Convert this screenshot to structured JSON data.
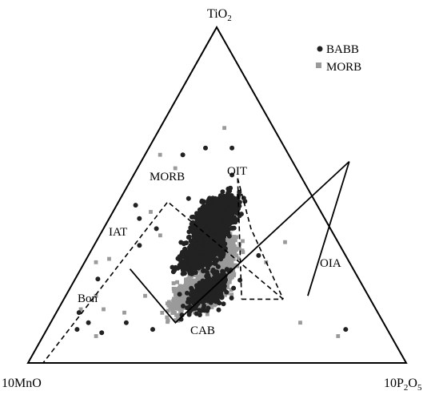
{
  "chart_data": {
    "type": "ternary",
    "vertices": {
      "top": {
        "main": "TiO",
        "sub": "2"
      },
      "left": {
        "main": "10MnO",
        "sub": ""
      },
      "right": {
        "main": "10P",
        "sub": "2",
        "main2": "O",
        "sub2": "5"
      }
    },
    "legend": {
      "placement": "top-right",
      "entries": [
        {
          "name": "BABB",
          "marker": "circle",
          "color": "#222222"
        },
        {
          "name": "MORB",
          "marker": "square",
          "color": "#9a9a9a"
        }
      ]
    },
    "fields": [
      "OIT",
      "MORB",
      "IAT",
      "OIA",
      "Bon",
      "CAB"
    ],
    "boundaries": [
      {
        "style": "solid",
        "points": [
          [
            0.13,
            0.28
          ],
          [
            0.33,
            0.12
          ],
          [
            0.55,
            0.6
          ]
        ]
      },
      {
        "style": "solid",
        "points": [
          [
            0.55,
            0.6
          ],
          [
            0.64,
            0.2
          ]
        ]
      },
      {
        "style": "dashed",
        "points": [
          [
            0.28,
            0.55
          ],
          [
            0.39,
            0.4
          ],
          [
            0.58,
            0.19
          ]
        ]
      },
      {
        "style": "dashed",
        "points": [
          [
            0.28,
            0.55
          ],
          [
            0.47,
            0.19
          ]
        ]
      },
      {
        "style": "dashed",
        "points": [
          [
            0.47,
            0.19
          ],
          [
            0.58,
            0.19
          ]
        ]
      },
      {
        "style": "dashed",
        "points": [
          [
            0.58,
            0.19
          ],
          [
            0.13,
            0.48
          ],
          [
            0.04,
            0.0
          ]
        ]
      }
    ],
    "series": [
      {
        "name": "MORB",
        "marker": "square",
        "color": "#9a9a9a",
        "clusters": [
          {
            "center": [
              0.37,
              0.25
            ],
            "spread": [
              0.045,
              0.07
            ],
            "count": 800
          },
          {
            "center": [
              0.34,
              0.33
            ],
            "spread": [
              0.04,
              0.045
            ],
            "count": 450
          },
          {
            "center": [
              0.32,
              0.2
            ],
            "spread": [
              0.04,
              0.06
            ],
            "count": 300
          }
        ],
        "scatter": [
          [
            0.78,
            0.08
          ],
          [
            0.66,
            0.12
          ],
          [
            0.5,
            0.36
          ],
          [
            0.48,
            0.3
          ],
          [
            0.21,
            0.2
          ],
          [
            0.18,
            0.15
          ],
          [
            0.16,
            0.38
          ],
          [
            0.1,
            0.45
          ],
          [
            0.08,
            0.2
          ],
          [
            0.06,
            0.31
          ],
          [
            0.17,
            0.7
          ],
          [
            0.1,
            0.58
          ],
          [
            0.04,
            0.62
          ],
          [
            0.03,
            0.3
          ],
          [
            0.06,
            0.16
          ],
          [
            0.12,
            0.16
          ],
          [
            0.24,
            0.44
          ],
          [
            0.27,
            0.48
          ],
          [
            0.14,
            0.08
          ]
        ]
      },
      {
        "name": "BABB",
        "marker": "circle",
        "color": "#222222",
        "clusters": [
          {
            "center": [
              0.28,
              0.43
            ],
            "spread": [
              0.05,
              0.07
            ],
            "count": 1000
          },
          {
            "center": [
              0.3,
              0.33
            ],
            "spread": [
              0.05,
              0.06
            ],
            "count": 600
          },
          {
            "center": [
              0.37,
              0.22
            ],
            "spread": [
              0.05,
              0.06
            ],
            "count": 300
          }
        ],
        "scatter": [
          [
            0.79,
            0.1
          ],
          [
            0.45,
            0.32
          ],
          [
            0.36,
            0.17
          ],
          [
            0.34,
            0.13
          ],
          [
            0.28,
            0.1
          ],
          [
            0.08,
            0.1
          ],
          [
            0.1,
            0.12
          ],
          [
            0.06,
            0.15
          ],
          [
            0.06,
            0.25
          ],
          [
            0.15,
            0.09
          ],
          [
            0.2,
            0.12
          ],
          [
            0.12,
            0.35
          ],
          [
            0.14,
            0.4
          ],
          [
            0.22,
            0.48
          ],
          [
            0.1,
            0.62
          ],
          [
            0.15,
            0.64
          ],
          [
            0.05,
            0.47
          ],
          [
            0.08,
            0.43
          ],
          [
            0.24,
            0.47
          ],
          [
            0.18,
            0.49
          ],
          [
            0.22,
            0.64
          ],
          [
            0.26,
            0.56
          ]
        ]
      }
    ]
  }
}
